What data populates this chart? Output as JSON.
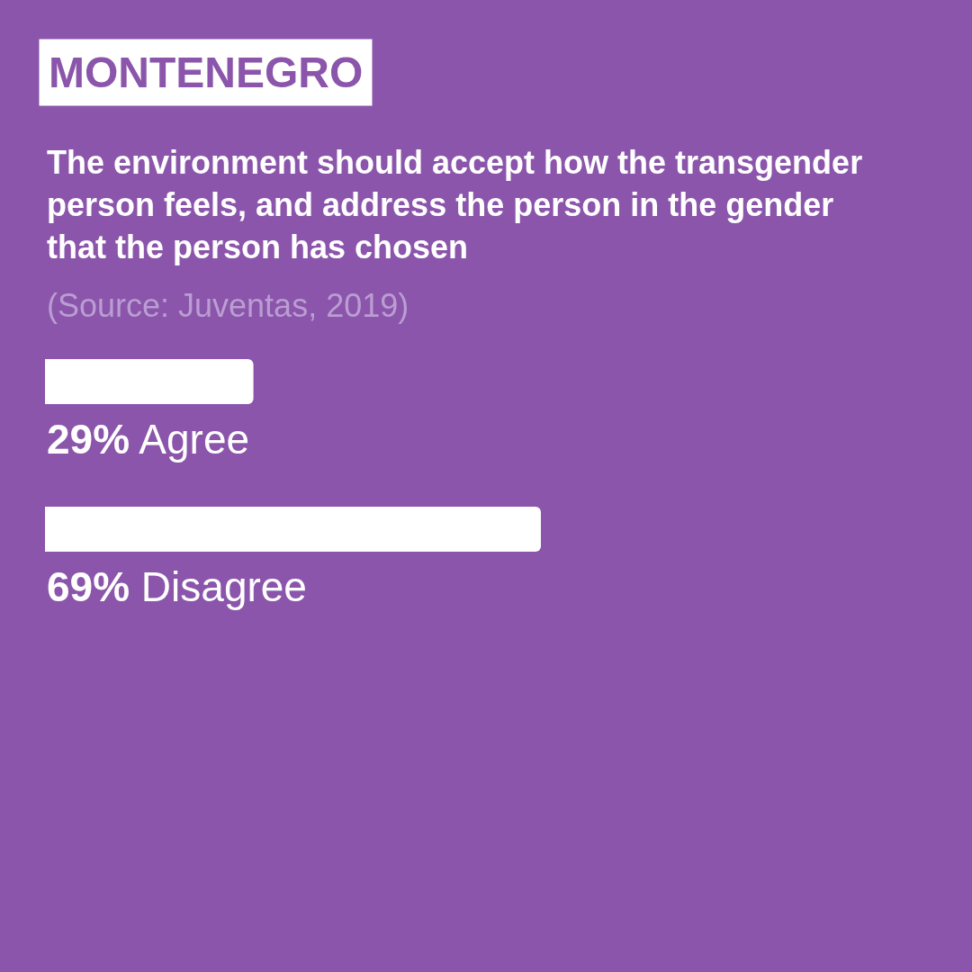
{
  "chart_data": {
    "type": "bar",
    "orientation": "horizontal",
    "title": "MONTENEGRO",
    "subtitle": "The environment should accept how the transgender person feels, and address the person in the gender that the person has chosen",
    "annotations": [
      "(Source: Juventas, 2019)"
    ],
    "categories": [
      "Agree",
      "Disagree"
    ],
    "values": [
      29,
      69
    ],
    "value_labels": [
      "29%",
      "69%"
    ],
    "color": "#ffffff",
    "grid": false
  }
}
